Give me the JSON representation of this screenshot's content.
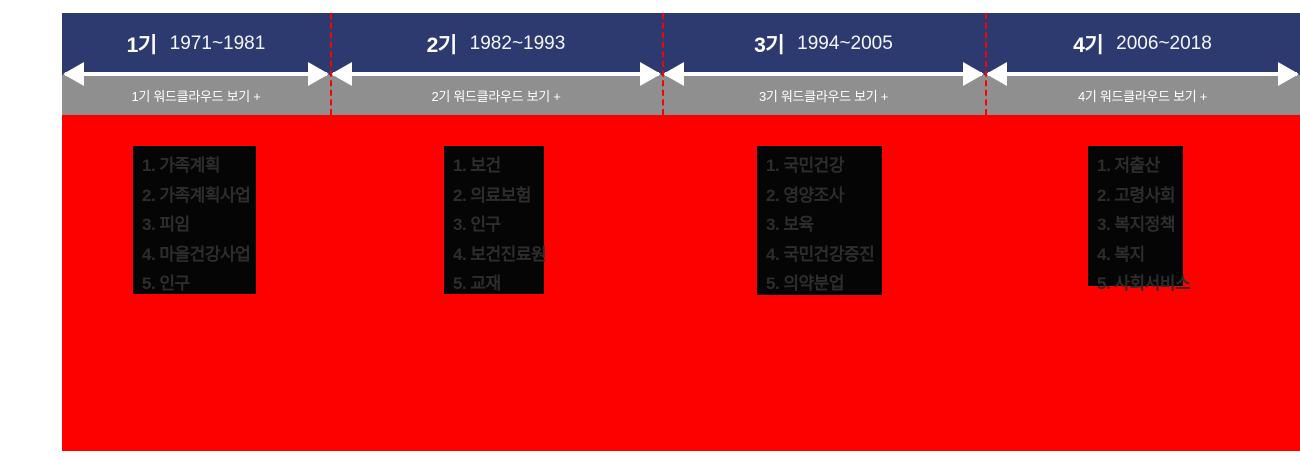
{
  "timeline": {
    "periods": [
      {
        "label": "1기",
        "years": "1971~1981",
        "wordcloud_button": "1기 워드클라우드 보기 +",
        "keywords": [
          "1. 가족계획",
          "2. 가족계획사업",
          "3. 피임",
          "4. 마을건강사업",
          "5. 인구"
        ]
      },
      {
        "label": "2기",
        "years": "1982~1993",
        "wordcloud_button": "2기 워드클라우드 보기 +",
        "keywords": [
          "1. 보건",
          "2. 의료보험",
          "3. 인구",
          "4. 보건진료원",
          "5. 교재"
        ]
      },
      {
        "label": "3기",
        "years": "1994~2005",
        "wordcloud_button": "3기 워드클라우드 보기 +",
        "keywords": [
          "1. 국민건강",
          "2. 영양조사",
          "3. 보육",
          "4. 국민건강증진",
          "5. 의약분업"
        ]
      },
      {
        "label": "4기",
        "years": "2006~2018",
        "wordcloud_button": "4기 워드클라우드 보기 +",
        "keywords": [
          "1. 저출산",
          "2. 고령사회",
          "3. 복지정책",
          "4. 복지",
          "5. 사회서비스"
        ]
      }
    ],
    "colors": {
      "header_navy": "#2c3a70",
      "button_gray": "#8f8f8f",
      "content_red": "#fc0100",
      "panel_black": "#050505",
      "keyword_text": "#2d2d2d",
      "divider_dashed_red": "#ff0000",
      "arrow_white": "#ffffff"
    }
  }
}
